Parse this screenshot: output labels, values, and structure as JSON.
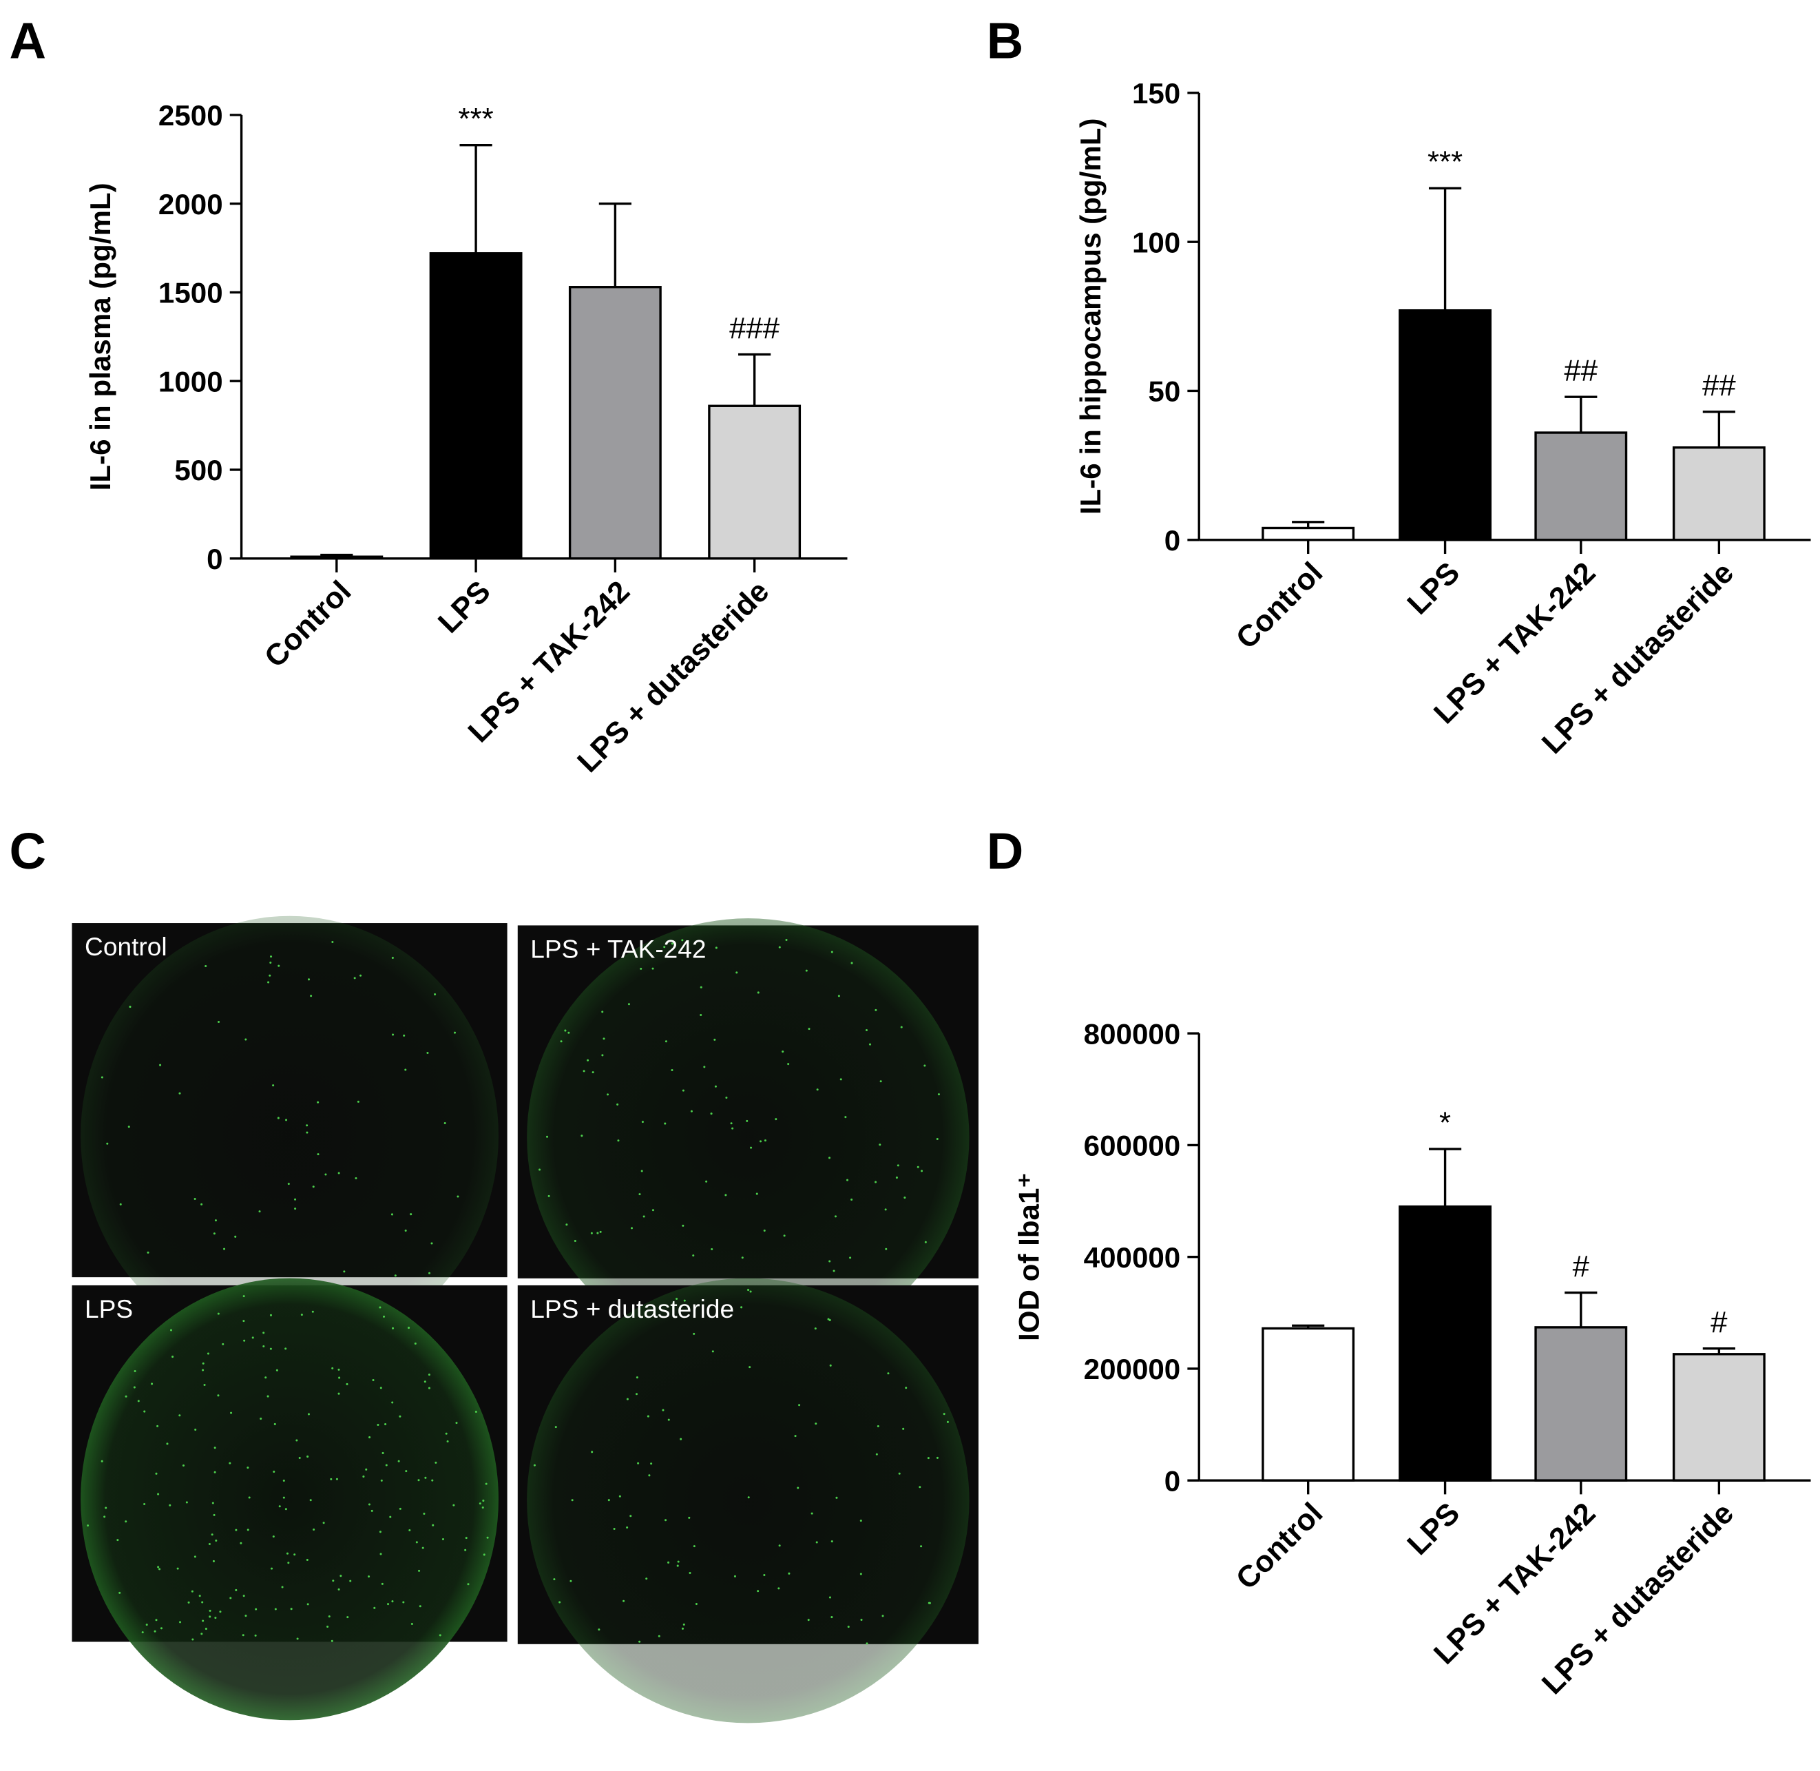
{
  "chart_data": [
    {
      "type": "bar",
      "panel": "A",
      "ylabel": "IL-6 in plasma (pg/mL)",
      "categories": [
        "Control",
        "LPS",
        "LPS + TAK-242",
        "LPS + dutasteride"
      ],
      "values": [
        10,
        1720,
        1530,
        860
      ],
      "errors": [
        10,
        610,
        470,
        290
      ],
      "annotations": [
        null,
        "***",
        null,
        "###"
      ],
      "colors": [
        "#ffffff",
        "#000000",
        "#9b9b9e",
        "#d4d4d4"
      ],
      "ylim": [
        0,
        2500
      ],
      "yticks": [
        0,
        500,
        1000,
        1500,
        2000,
        2500
      ]
    },
    {
      "type": "bar",
      "panel": "B",
      "ylabel": "IL-6 in hippocampus (pg/mL)",
      "categories": [
        "Control",
        "LPS",
        "LPS + TAK-242",
        "LPS + dutasteride"
      ],
      "values": [
        4,
        77,
        36,
        31
      ],
      "errors": [
        2,
        41,
        12,
        12
      ],
      "annotations": [
        null,
        "***",
        "##",
        "##"
      ],
      "colors": [
        "#ffffff",
        "#000000",
        "#9b9b9e",
        "#d4d4d4"
      ],
      "ylim": [
        0,
        150
      ],
      "yticks": [
        0,
        50,
        100,
        150
      ]
    },
    {
      "type": "bar",
      "panel": "D",
      "ylabel": "IOD of Iba1⁺",
      "categories": [
        "Control",
        "LPS",
        "LPS + TAK-242",
        "LPS + dutasteride"
      ],
      "values": [
        272000,
        490000,
        274000,
        226000
      ],
      "errors": [
        5000,
        103000,
        62000,
        10000
      ],
      "annotations": [
        null,
        "*",
        "#",
        "#"
      ],
      "colors": [
        "#ffffff",
        "#000000",
        "#9b9b9e",
        "#d4d4d4"
      ],
      "ylim": [
        0,
        800000
      ],
      "yticks": [
        0,
        200000,
        400000,
        600000,
        800000
      ]
    }
  ],
  "panel_c": {
    "panel": "C",
    "images": [
      {
        "label": "Control"
      },
      {
        "label": "LPS + TAK-242"
      },
      {
        "label": "LPS"
      },
      {
        "label": "LPS + dutasteride"
      }
    ]
  }
}
